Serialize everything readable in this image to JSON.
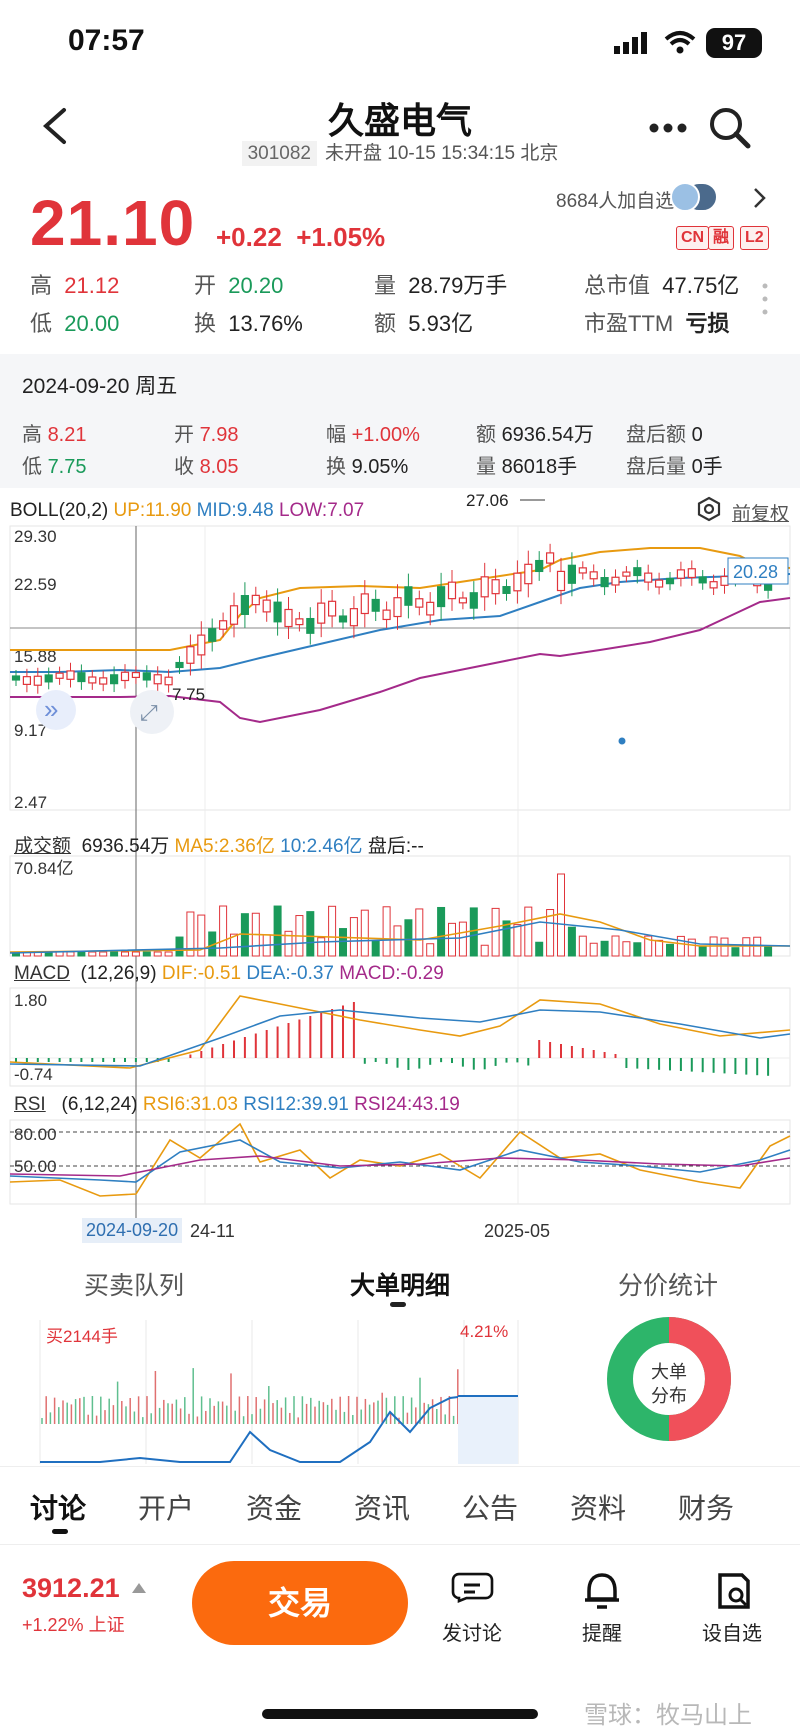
{
  "status_bar": {
    "time": "07:57",
    "battery": "97"
  },
  "header": {
    "title": "久盛电气",
    "code": "301082",
    "market_status": "未开盘 10-15 15:34:15 北京"
  },
  "quote": {
    "price": "21.10",
    "change": "+0.22",
    "change_pct": "+1.05%",
    "followers": "8684人加自选",
    "tags": [
      "CN",
      "融",
      "L2"
    ],
    "high_label": "高",
    "high": "21.12",
    "open_label": "开",
    "open": "20.20",
    "volume_label": "量",
    "volume": "28.79万手",
    "mktcap_label": "总市值",
    "mktcap": "47.75亿",
    "low_label": "低",
    "low": "20.00",
    "turnover_label": "换",
    "turnover": "13.76%",
    "amount_label": "额",
    "amount": "5.93亿",
    "pe_label": "市盈TTM",
    "pe": "亏损"
  },
  "day_panel": {
    "date": "2024-09-20 周五",
    "high_label": "高",
    "high": "8.21",
    "open_label": "开",
    "open": "7.98",
    "amp_label": "幅",
    "amp": "+1.00%",
    "amount_label": "额",
    "amount": "6936.54万",
    "after_amount_label": "盘后额",
    "after_amount": "0",
    "low_label": "低",
    "low": "7.75",
    "close_label": "收",
    "close": "8.05",
    "turnover_label": "换",
    "turnover": "9.05%",
    "volume_label": "量",
    "volume": "86018手",
    "after_volume_label": "盘后量",
    "after_volume": "0手"
  },
  "boll": {
    "name": "BOLL(20,2)",
    "up": "UP:11.90",
    "mid": "MID:9.48",
    "low": "LOW:7.07",
    "adjust": "前复权",
    "axis": [
      "29.30",
      "22.59",
      "15.88",
      "9.17",
      "2.47"
    ],
    "peak_label": "27.06",
    "low_marker": "7.75",
    "current_tag": "20.28"
  },
  "turnover_ind": {
    "name": "成交额",
    "value": "6936.54万",
    "ma5": "MA5:2.36亿",
    "ma10": "10:2.46亿",
    "after": "盘后:--",
    "axis_top": "70.84亿"
  },
  "macd": {
    "name": "MACD",
    "params": "(12,26,9)",
    "dif": "DIF:-0.51",
    "dea": "DEA:-0.37",
    "macd": "MACD:-0.29",
    "axis": [
      "1.80",
      "-0.74"
    ]
  },
  "rsi": {
    "name": "RSI",
    "params": "(6,12,24)",
    "rsi6": "RSI6:31.03",
    "rsi12": "RSI12:39.91",
    "rsi24": "RSI24:43.19",
    "axis": [
      "80.00",
      "50.00"
    ]
  },
  "x_axis": {
    "selected": "2024-09-20",
    "tick1": "24-11",
    "tick2": "2025-05"
  },
  "detail_tabs": [
    "买卖队列",
    "大单明细",
    "分价统计"
  ],
  "detail": {
    "buy_label": "买2144手",
    "pct": "4.21%",
    "donut_line1": "大单",
    "donut_line2": "分布"
  },
  "main_tabs": [
    "讨论",
    "开户",
    "资金",
    "资讯",
    "公告",
    "资料",
    "财务"
  ],
  "footer": {
    "index_value": "3912.21",
    "index_change": "+1.22%",
    "index_name": "上证",
    "trade": "交易",
    "discuss": "发讨论",
    "remind": "提醒",
    "watch": "设自选",
    "watermark": "雪球：牧马山上"
  },
  "colors": {
    "red": "#e0343a",
    "green": "#1a9a5a",
    "orange": "#fb6a0e",
    "mid_line": "#2f7fc1",
    "up_line": "#e89a10",
    "low_line": "#a42a8a"
  }
}
